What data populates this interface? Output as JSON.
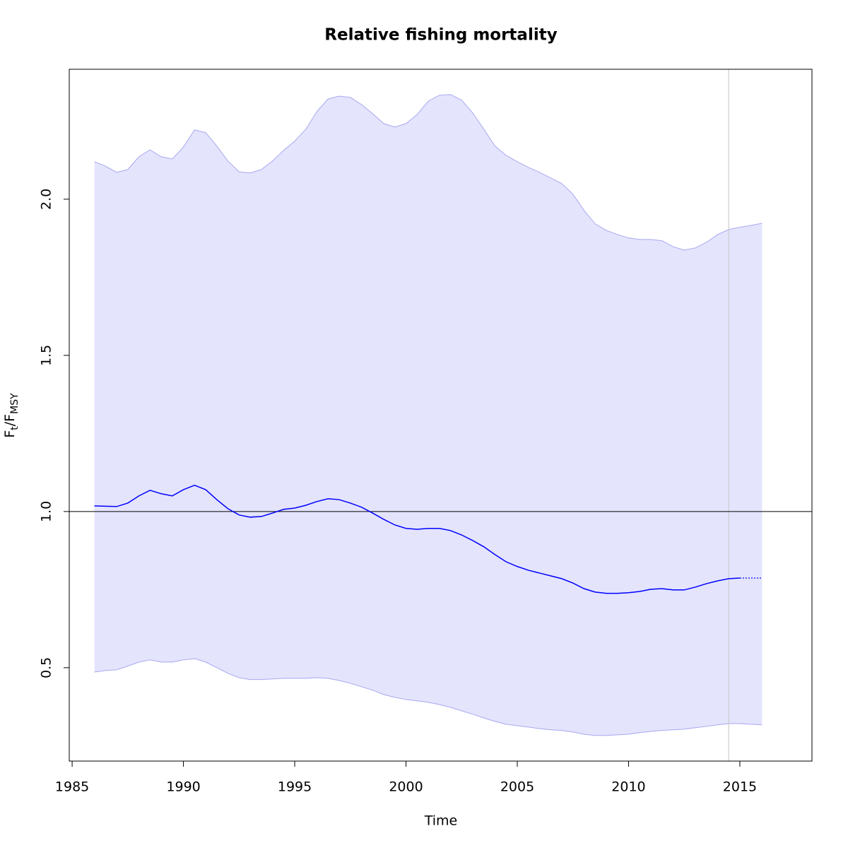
{
  "chart_data": {
    "type": "line",
    "title": "Relative fishing mortality",
    "xlabel": "Time",
    "ylabel": {
      "parts": [
        "F",
        "t",
        "/F",
        "MSY"
      ],
      "subscript": [
        false,
        true,
        false,
        true
      ]
    },
    "x": [
      1986,
      1986.5,
      1987,
      1987.5,
      1988,
      1988.5,
      1989,
      1989.5,
      1990,
      1990.5,
      1991,
      1991.5,
      1992,
      1992.5,
      1993,
      1993.5,
      1994,
      1994.5,
      1995,
      1995.5,
      1996,
      1996.5,
      1997,
      1997.5,
      1998,
      1998.5,
      1999,
      1999.5,
      2000,
      2000.5,
      2001,
      2001.5,
      2002,
      2002.5,
      2003,
      2003.5,
      2004,
      2004.5,
      2005,
      2005.5,
      2006,
      2006.5,
      2007,
      2007.5,
      2008,
      2008.5,
      2009,
      2009.5,
      2010,
      2010.5,
      2011,
      2011.5,
      2012,
      2012.5,
      2013,
      2013.5,
      2014,
      2014.5,
      2015,
      2015.5,
      2016
    ],
    "values": [
      1.018,
      1.017,
      1.016,
      1.027,
      1.05,
      1.068,
      1.057,
      1.05,
      1.07,
      1.084,
      1.07,
      1.038,
      1.009,
      0.989,
      0.982,
      0.984,
      0.995,
      1.007,
      1.011,
      1.02,
      1.032,
      1.041,
      1.038,
      1.027,
      1.014,
      0.995,
      0.975,
      0.957,
      0.946,
      0.943,
      0.946,
      0.946,
      0.939,
      0.925,
      0.907,
      0.887,
      0.862,
      0.839,
      0.824,
      0.812,
      0.803,
      0.794,
      0.785,
      0.771,
      0.753,
      0.742,
      0.738,
      0.738,
      0.74,
      0.744,
      0.751,
      0.753,
      0.749,
      0.749,
      0.758,
      0.769,
      0.778,
      0.785,
      0.787,
      0.787,
      0.787
    ],
    "upper": [
      2.12,
      2.106,
      2.086,
      2.095,
      2.136,
      2.158,
      2.136,
      2.129,
      2.167,
      2.222,
      2.213,
      2.17,
      2.122,
      2.088,
      2.084,
      2.095,
      2.122,
      2.156,
      2.186,
      2.224,
      2.281,
      2.321,
      2.33,
      2.326,
      2.303,
      2.274,
      2.242,
      2.231,
      2.242,
      2.271,
      2.314,
      2.333,
      2.335,
      2.317,
      2.276,
      2.224,
      2.17,
      2.14,
      2.12,
      2.102,
      2.086,
      2.068,
      2.05,
      2.016,
      1.964,
      1.921,
      1.9,
      1.887,
      1.876,
      1.871,
      1.871,
      1.867,
      1.848,
      1.837,
      1.844,
      1.862,
      1.887,
      1.903,
      1.91,
      1.916,
      1.923
    ],
    "lower": [
      0.486,
      0.491,
      0.493,
      0.505,
      0.518,
      0.525,
      0.518,
      0.518,
      0.525,
      0.529,
      0.518,
      0.5,
      0.482,
      0.468,
      0.462,
      0.462,
      0.464,
      0.466,
      0.466,
      0.466,
      0.468,
      0.466,
      0.459,
      0.45,
      0.439,
      0.428,
      0.414,
      0.405,
      0.398,
      0.394,
      0.389,
      0.382,
      0.373,
      0.362,
      0.351,
      0.339,
      0.328,
      0.319,
      0.314,
      0.31,
      0.305,
      0.301,
      0.299,
      0.294,
      0.287,
      0.283,
      0.283,
      0.285,
      0.287,
      0.292,
      0.296,
      0.299,
      0.301,
      0.303,
      0.308,
      0.312,
      0.317,
      0.321,
      0.321,
      0.319,
      0.317
    ],
    "dotted_from": 2015,
    "color": "#0000ff",
    "band_color": "#e4e4fd",
    "band_edge_color": "#a8a8f0",
    "hline": 1,
    "vline": 2014.5,
    "vline_color": "#cccccc",
    "xlim": [
      1984.87,
      2018.24
    ],
    "ylim": [
      0.201,
      2.416
    ],
    "xticks": [
      1985,
      1990,
      1995,
      2000,
      2005,
      2010,
      2015
    ],
    "yticks": [
      0.5,
      {
        "value": 1,
        "label": "1.0"
      },
      1.5,
      {
        "value": 2,
        "label": "2.0"
      }
    ]
  }
}
